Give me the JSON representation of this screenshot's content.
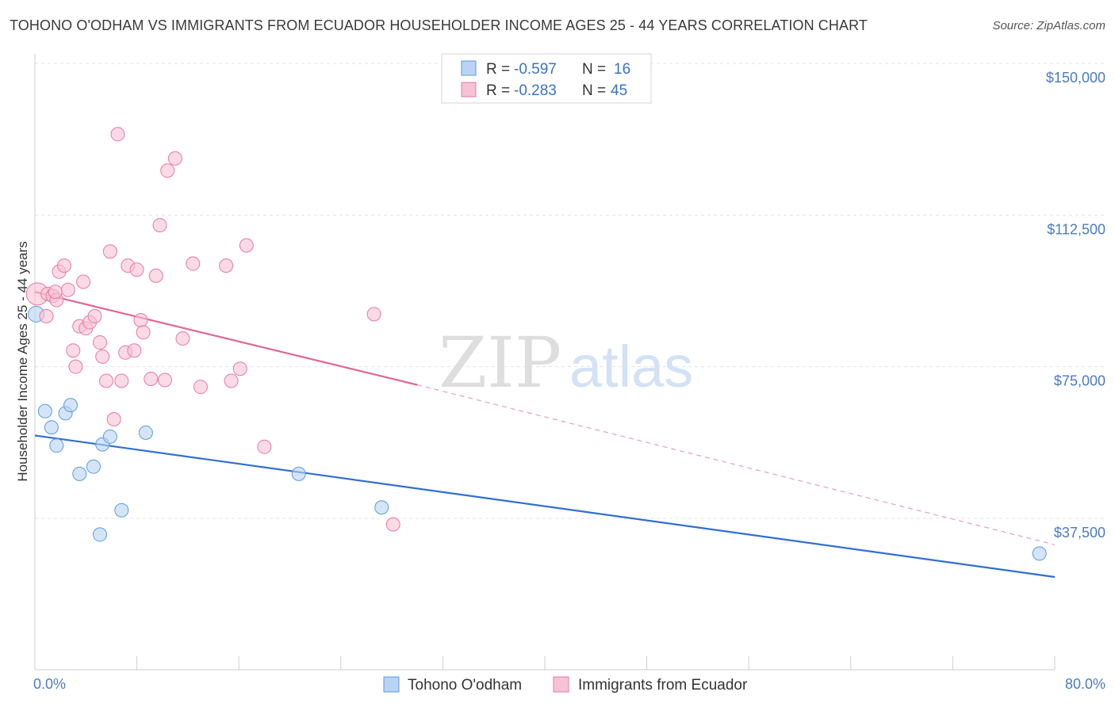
{
  "title": "TOHONO O'ODHAM VS IMMIGRANTS FROM ECUADOR HOUSEHOLDER INCOME AGES 25 - 44 YEARS CORRELATION CHART",
  "source": "Source: ZipAtlas.com",
  "watermark": {
    "zip": "ZIP",
    "atlas": "atlas"
  },
  "legend": {
    "rows": [
      {
        "r_label": "R = ",
        "r_value": "-0.597",
        "n_label": "N = ",
        "n_value": "16"
      },
      {
        "r_label": "R = ",
        "r_value": "-0.283",
        "n_label": "N = ",
        "n_value": "45"
      }
    ]
  },
  "chart_data": {
    "type": "scatter",
    "title": "TOHONO O'ODHAM VS IMMIGRANTS FROM ECUADOR HOUSEHOLDER INCOME AGES 25 - 44 YEARS CORRELATION CHART",
    "xlabel": "",
    "ylabel": "Householder Income Ages 25 - 44 years",
    "xlim": [
      0,
      80
    ],
    "ylim": [
      0,
      157000
    ],
    "x_tick_labels": [
      "0.0%",
      "80.0%"
    ],
    "y_ticks": [
      37500,
      75000,
      112500,
      150000
    ],
    "y_tick_labels": [
      "$37,500",
      "$75,000",
      "$112,500",
      "$150,000"
    ],
    "grid": true,
    "legend_position": "top-center",
    "series": [
      {
        "name": "Tohono O'odham",
        "color": "#5b9be0",
        "fill": "#b8d3f4",
        "r": -0.597,
        "n": 16,
        "trend": {
          "x0": 0,
          "y0": 58000,
          "x1": 80,
          "y1": 23000
        },
        "points": [
          {
            "x": 0.1,
            "y": 88000
          },
          {
            "x": 0.8,
            "y": 64000
          },
          {
            "x": 1.3,
            "y": 60000
          },
          {
            "x": 1.7,
            "y": 55500
          },
          {
            "x": 2.4,
            "y": 63500
          },
          {
            "x": 2.8,
            "y": 65500
          },
          {
            "x": 3.5,
            "y": 48500
          },
          {
            "x": 4.6,
            "y": 50300
          },
          {
            "x": 5.1,
            "y": 33500
          },
          {
            "x": 5.3,
            "y": 55800
          },
          {
            "x": 5.9,
            "y": 57700
          },
          {
            "x": 6.8,
            "y": 39500
          },
          {
            "x": 8.7,
            "y": 58700
          },
          {
            "x": 20.7,
            "y": 48500
          },
          {
            "x": 27.2,
            "y": 40200
          },
          {
            "x": 78.8,
            "y": 28800
          }
        ]
      },
      {
        "name": "Immigrants from Ecuador",
        "color": "#e97aa0",
        "fill": "#f7c2d4",
        "r": -0.283,
        "n": 45,
        "trend": {
          "x0": 0,
          "y0": 93500,
          "x1": 30,
          "y1": 70500
        },
        "trend_dashed": {
          "x0": 30,
          "y0": 70500,
          "x1": 80,
          "y1": 31000
        },
        "points": [
          {
            "x": 0.2,
            "y": 93000
          },
          {
            "x": 0.9,
            "y": 87500
          },
          {
            "x": 1.0,
            "y": 93000
          },
          {
            "x": 1.4,
            "y": 92500
          },
          {
            "x": 1.7,
            "y": 91500
          },
          {
            "x": 1.9,
            "y": 98500
          },
          {
            "x": 2.3,
            "y": 100000
          },
          {
            "x": 2.6,
            "y": 94000
          },
          {
            "x": 3.0,
            "y": 79000
          },
          {
            "x": 3.2,
            "y": 75000
          },
          {
            "x": 3.5,
            "y": 85000
          },
          {
            "x": 3.8,
            "y": 96000
          },
          {
            "x": 4.0,
            "y": 84500
          },
          {
            "x": 4.3,
            "y": 86000
          },
          {
            "x": 4.7,
            "y": 87500
          },
          {
            "x": 5.1,
            "y": 81000
          },
          {
            "x": 5.3,
            "y": 77500
          },
          {
            "x": 5.6,
            "y": 71500
          },
          {
            "x": 5.9,
            "y": 103500
          },
          {
            "x": 6.2,
            "y": 62000
          },
          {
            "x": 6.5,
            "y": 132500
          },
          {
            "x": 6.8,
            "y": 71500
          },
          {
            "x": 7.1,
            "y": 78500
          },
          {
            "x": 7.3,
            "y": 100000
          },
          {
            "x": 7.8,
            "y": 79000
          },
          {
            "x": 8.0,
            "y": 99000
          },
          {
            "x": 8.3,
            "y": 86500
          },
          {
            "x": 8.5,
            "y": 83500
          },
          {
            "x": 9.1,
            "y": 72000
          },
          {
            "x": 9.5,
            "y": 97500
          },
          {
            "x": 9.8,
            "y": 110000
          },
          {
            "x": 10.2,
            "y": 71700
          },
          {
            "x": 10.4,
            "y": 123500
          },
          {
            "x": 11.0,
            "y": 126500
          },
          {
            "x": 11.6,
            "y": 82000
          },
          {
            "x": 12.4,
            "y": 100500
          },
          {
            "x": 13.0,
            "y": 70000
          },
          {
            "x": 15.0,
            "y": 100000
          },
          {
            "x": 15.4,
            "y": 71500
          },
          {
            "x": 16.1,
            "y": 74500
          },
          {
            "x": 16.6,
            "y": 105000
          },
          {
            "x": 18.0,
            "y": 55200
          },
          {
            "x": 26.6,
            "y": 88000
          },
          {
            "x": 28.1,
            "y": 36000
          },
          {
            "x": 1.6,
            "y": 93500
          }
        ]
      }
    ]
  }
}
